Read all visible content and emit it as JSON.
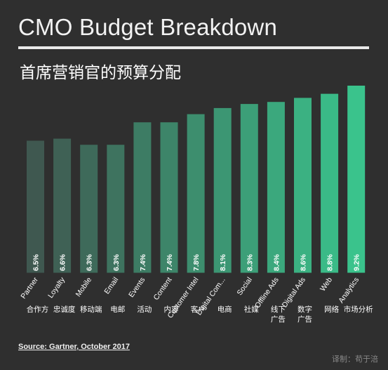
{
  "title": "CMO Budget Breakdown",
  "subtitle": "首席营销官的预算分配",
  "source": "Source: Gartner, October 2017",
  "credit": "译制：苟于涪",
  "colors": {
    "background": "#2f2f2f",
    "bar_low": "#3f5850",
    "bar_high": "#3ac38c",
    "text": "#ffffff"
  },
  "chart_data": {
    "type": "bar",
    "title": "CMO Budget Breakdown",
    "subtitle": "首席营销官的预算分配",
    "categories": [
      "Partner",
      "Loyalty",
      "Mobile",
      "Email",
      "Events",
      "Content",
      "Customer Intel",
      "Digital Com...",
      "Social",
      "Offline Ads",
      "Digital Ads",
      "Web",
      "Analytics"
    ],
    "categories_cn": [
      "合作方",
      "忠诚度",
      "移动端",
      "电邮",
      "活动",
      "内容",
      "客户",
      "电商",
      "社媒",
      "线下\n广告",
      "数字\n广告",
      "网络",
      "市场分析"
    ],
    "values": [
      6.5,
      6.6,
      6.3,
      6.3,
      7.4,
      7.4,
      7.8,
      8.1,
      8.3,
      8.4,
      8.6,
      8.8,
      9.2
    ],
    "value_labels": [
      "6.5%",
      "6.6%",
      "6.3%",
      "6.3%",
      "7.4%",
      "7.4%",
      "7.8%",
      "8.1%",
      "8.3%",
      "8.4%",
      "8.6%",
      "8.8%",
      "9.2%"
    ],
    "ylim": [
      0,
      9.2
    ],
    "grid": false,
    "legend": "none"
  }
}
